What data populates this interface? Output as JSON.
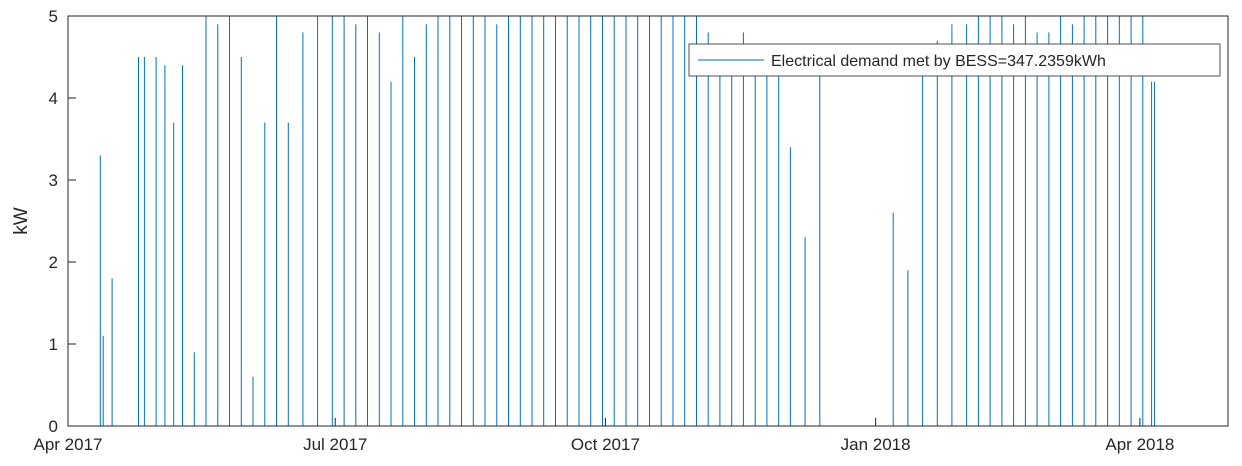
{
  "chart_data": {
    "type": "line",
    "title": "",
    "xlabel": "",
    "ylabel": "kW",
    "xlim": [
      "2017-04-01",
      "2018-05-01"
    ],
    "ylim": [
      0,
      5
    ],
    "x_ticks": [
      "2017-04-01",
      "2017-07-01",
      "2017-10-01",
      "2018-01-01",
      "2018-04-01"
    ],
    "x_tick_labels": [
      "Apr 2017",
      "Jul 2017",
      "Oct 2017",
      "Jan 2018",
      "Apr 2018"
    ],
    "y_ticks": [
      0,
      1,
      2,
      3,
      4,
      5
    ],
    "y_tick_labels": [
      "0",
      "1",
      "2",
      "3",
      "4",
      "5"
    ],
    "grid": false,
    "legend": "top-right",
    "series": [
      {
        "name": "Electrical demand met by BESS=347.2359kWh",
        "color": "#0072BD",
        "x": [
          "2017-04-01",
          "2017-04-12",
          "2017-04-13",
          "2017-04-16",
          "2017-04-20",
          "2017-04-25",
          "2017-04-27",
          "2017-05-01",
          "2017-05-04",
          "2017-05-07",
          "2017-05-10",
          "2017-05-14",
          "2017-05-18",
          "2017-05-22",
          "2017-05-26",
          "2017-05-30",
          "2017-06-03",
          "2017-06-07",
          "2017-06-11",
          "2017-06-15",
          "2017-06-20",
          "2017-06-25",
          "2017-06-30",
          "2017-07-04",
          "2017-07-08",
          "2017-07-12",
          "2017-07-16",
          "2017-07-20",
          "2017-07-24",
          "2017-07-28",
          "2017-08-01",
          "2017-08-05",
          "2017-08-09",
          "2017-08-13",
          "2017-08-17",
          "2017-08-21",
          "2017-08-25",
          "2017-08-29",
          "2017-09-02",
          "2017-09-06",
          "2017-09-10",
          "2017-09-14",
          "2017-09-18",
          "2017-09-22",
          "2017-09-26",
          "2017-09-30",
          "2017-10-04",
          "2017-10-08",
          "2017-10-12",
          "2017-10-16",
          "2017-10-20",
          "2017-10-24",
          "2017-10-28",
          "2017-11-01",
          "2017-11-05",
          "2017-11-09",
          "2017-11-13",
          "2017-11-17",
          "2017-11-21",
          "2017-11-25",
          "2017-11-29",
          "2017-12-03",
          "2017-12-08",
          "2017-12-13",
          "2017-12-18",
          "2017-12-23",
          "2017-12-28",
          "2018-01-02",
          "2018-01-07",
          "2018-01-12",
          "2018-01-17",
          "2018-01-22",
          "2018-01-27",
          "2018-02-01",
          "2018-02-05",
          "2018-02-09",
          "2018-02-13",
          "2018-02-17",
          "2018-02-21",
          "2018-02-25",
          "2018-03-01",
          "2018-03-05",
          "2018-03-09",
          "2018-03-13",
          "2018-03-17",
          "2018-03-21",
          "2018-03-25",
          "2018-03-29",
          "2018-04-02",
          "2018-04-05",
          "2018-04-06",
          "2018-05-01"
        ],
        "y": [
          0,
          3.3,
          1.1,
          1.8,
          0,
          4.5,
          4.5,
          4.5,
          4.4,
          3.7,
          4.4,
          0.9,
          5,
          4.9,
          5,
          4.5,
          0.6,
          3.7,
          5,
          3.7,
          4.8,
          5,
          5,
          5,
          4.9,
          5,
          4.8,
          4.2,
          5,
          4.5,
          4.9,
          5,
          5,
          5,
          5,
          5,
          4.9,
          5,
          5,
          5,
          5,
          5,
          5,
          5,
          5,
          5,
          5,
          5,
          5,
          5,
          5,
          5,
          5,
          5,
          4.8,
          4.5,
          4.6,
          4.8,
          4.3,
          4.4,
          4.5,
          3.4,
          2.3,
          4.4,
          0,
          0,
          0,
          0,
          2.6,
          1.9,
          4.5,
          4.7,
          4.9,
          4.9,
          5,
          5,
          5,
          4.9,
          5,
          4.8,
          4.8,
          5,
          4.9,
          5,
          5,
          5,
          5,
          5,
          5,
          4.2,
          4.2,
          0
        ]
      }
    ]
  }
}
